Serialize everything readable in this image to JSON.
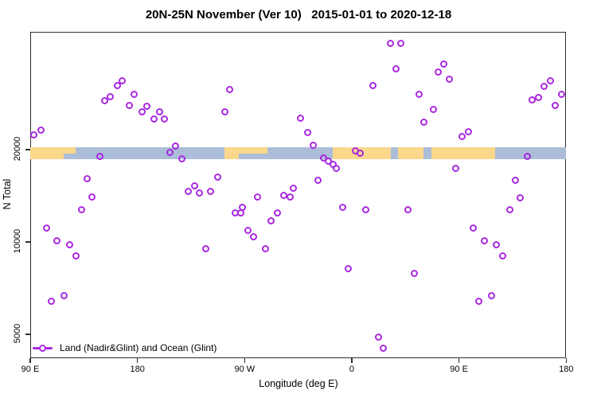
{
  "chart_data": {
    "type": "scatter",
    "title": "20N-25N November (Ver 10)   2015-01-01 to 2020-12-18",
    "xlabel": "Longitude (deg E)",
    "ylabel": "N Total",
    "y_scale": "log",
    "ylim": [
      4180,
      48400
    ],
    "x_axis": {
      "note": "wrapped longitude axis; u = degrees eastward from 90E at left edge, total span 450 deg",
      "range": [
        0,
        450
      ],
      "ticks": [
        {
          "u": 0,
          "label": "90 E"
        },
        {
          "u": 90,
          "label": "180"
        },
        {
          "u": 180,
          "label": "90 W"
        },
        {
          "u": 270,
          "label": "0"
        },
        {
          "u": 360,
          "label": "90 E"
        },
        {
          "u": 450,
          "label": "180"
        }
      ]
    },
    "y_axis": {
      "ticks": [
        {
          "value": 5000,
          "label": "5000"
        },
        {
          "value": 10000,
          "label": "10000"
        },
        {
          "value": 20000,
          "label": "20000"
        }
      ]
    },
    "legend": {
      "label": "Land (Nadir&Glint) and Ocean (Glint)",
      "marker": "open-circle-on-line"
    },
    "colors": {
      "point": "#A928E0",
      "ocean": "#ABBDD8",
      "land": "#FBD78C",
      "frame": "#2E2E2E"
    },
    "map_strip": {
      "description": "20N-25N latitude world-map band drawn across plot near N=20000",
      "n_top": 20400,
      "n_bottom": 18600,
      "land_segments_u": [
        [
          0,
          28
        ],
        [
          163,
          175
        ],
        [
          254,
          303
        ],
        [
          309,
          330
        ],
        [
          337,
          390
        ]
      ],
      "land_segments_thin_u": [
        [
          28,
          38
        ],
        [
          175,
          199
        ]
      ]
    },
    "points_format": "[u_deg_along_axis, N_total]",
    "points": [
      [
        3.3,
        22300
      ],
      [
        8.7,
        23100
      ],
      [
        13.4,
        11100
      ],
      [
        18.0,
        6400
      ],
      [
        22.7,
        10100
      ],
      [
        28.1,
        6700
      ],
      [
        33.4,
        9800
      ],
      [
        38.1,
        9000
      ],
      [
        43.4,
        12700
      ],
      [
        48.1,
        16100
      ],
      [
        52.1,
        14000
      ],
      [
        58.8,
        19000
      ],
      [
        62.2,
        28800
      ],
      [
        67.5,
        29700
      ],
      [
        73.5,
        32300
      ],
      [
        76.9,
        33600
      ],
      [
        82.9,
        27900
      ],
      [
        87.5,
        30200
      ],
      [
        93.6,
        26600
      ],
      [
        97.6,
        27700
      ],
      [
        103.6,
        25100
      ],
      [
        108.3,
        26500
      ],
      [
        112.9,
        25100
      ],
      [
        117.6,
        19600
      ],
      [
        122.3,
        20500
      ],
      [
        127.0,
        18700
      ],
      [
        133.0,
        14600
      ],
      [
        137.7,
        15200
      ],
      [
        142.3,
        14400
      ],
      [
        147.7,
        9500
      ],
      [
        151.7,
        14600
      ],
      [
        157.7,
        16300
      ],
      [
        163.1,
        26500
      ],
      [
        167.7,
        31300
      ],
      [
        171.8,
        12400
      ],
      [
        177.1,
        12400
      ],
      [
        177.8,
        13000
      ],
      [
        183.1,
        10900
      ],
      [
        187.8,
        10400
      ],
      [
        191.1,
        14000
      ],
      [
        197.8,
        9500
      ],
      [
        202.5,
        11700
      ],
      [
        207.8,
        12400
      ],
      [
        213.2,
        14200
      ],
      [
        217.9,
        14000
      ],
      [
        221.2,
        15000
      ],
      [
        227.2,
        25300
      ],
      [
        232.6,
        22800
      ],
      [
        237.9,
        20700
      ],
      [
        241.3,
        15900
      ],
      [
        246.6,
        18800
      ],
      [
        250.6,
        18300
      ],
      [
        254.0,
        17900
      ],
      [
        257.3,
        17400
      ],
      [
        262.0,
        13000
      ],
      [
        267.3,
        8200
      ],
      [
        272.7,
        19800
      ],
      [
        276.7,
        19500
      ],
      [
        282.0,
        12700
      ],
      [
        287.4,
        32300
      ],
      [
        292.7,
        4900
      ],
      [
        296.7,
        4500
      ],
      [
        302.1,
        44500
      ],
      [
        307.4,
        36600
      ],
      [
        311.4,
        44500
      ],
      [
        316.8,
        12700
      ],
      [
        322.8,
        7900
      ],
      [
        326.8,
        30200
      ],
      [
        330.8,
        24500
      ],
      [
        338.2,
        27000
      ],
      [
        342.2,
        35700
      ],
      [
        347.5,
        37900
      ],
      [
        352.2,
        34000
      ],
      [
        357.5,
        17400
      ],
      [
        362.9,
        22000
      ],
      [
        367.6,
        22900
      ],
      [
        372.2,
        11100
      ],
      [
        376.9,
        6400
      ],
      [
        381.6,
        10100
      ],
      [
        387.6,
        6700
      ],
      [
        391.6,
        9800
      ],
      [
        396.9,
        9000
      ],
      [
        403.0,
        12700
      ],
      [
        407.6,
        15900
      ],
      [
        411.6,
        13900
      ],
      [
        417.7,
        19000
      ],
      [
        421.7,
        29000
      ],
      [
        427.0,
        29500
      ],
      [
        431.7,
        32100
      ],
      [
        437.0,
        33600
      ],
      [
        441.1,
        27900
      ],
      [
        446.4,
        30200
      ]
    ]
  }
}
